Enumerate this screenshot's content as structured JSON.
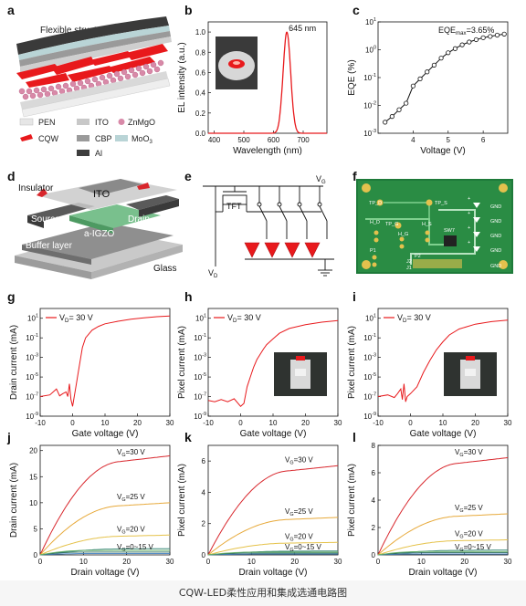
{
  "caption": "CQW-LED柔性应用和集成选通电路图",
  "panel_labels": [
    "a",
    "b",
    "c",
    "d",
    "e",
    "f",
    "g",
    "h",
    "i",
    "j",
    "k",
    "l"
  ],
  "panel_a": {
    "title": "Flexible structure",
    "legend": [
      {
        "label": "PEN",
        "color": "#e6e6e6"
      },
      {
        "label": "ITO",
        "color": "#c8c8c8"
      },
      {
        "label": "ZnMgO",
        "color": "#d889a8"
      },
      {
        "label": "CQW",
        "color": "#e8191c"
      },
      {
        "label": "CBP",
        "color": "#9a9a9a"
      },
      {
        "label": "MoO",
        "sub": "3",
        "color": "#b9d4d6"
      },
      {
        "label": "Al",
        "color": "#3d3d3d"
      }
    ]
  },
  "panel_d": {
    "labels": {
      "insulator": "Insulator",
      "ito": "ITO",
      "source": "Source",
      "drain": "Drain",
      "channel": "a-IGZO",
      "buffer": "Buffer layer",
      "glass": "Glass"
    }
  },
  "panel_e": {
    "labels": {
      "vg": "V",
      "vg_sub": "G",
      "tft": "TFT",
      "vd": "V",
      "vd_sub": "D"
    }
  },
  "panel_f": {
    "labels": [
      "TP_D",
      "TP_S",
      "H_D",
      "TP_G",
      "H_S",
      "SW7",
      "H_G",
      "P1",
      "P2",
      "GND",
      "GND",
      "GND",
      "GND",
      "GND",
      "J2",
      "J1",
      "+",
      "+",
      "+",
      "+"
    ]
  },
  "chart_data": [
    {
      "panel": "b",
      "type": "line",
      "xlabel": "Wavelength (nm)",
      "ylabel": "EL intensity (a.u.)",
      "xlim": [
        380,
        780
      ],
      "ylim": [
        0,
        1.1
      ],
      "xticks": [
        400,
        500,
        600,
        700
      ],
      "yticks": [
        0.0,
        0.2,
        0.4,
        0.6,
        0.8,
        1.0
      ],
      "peak_label": "645 nm",
      "series": [
        {
          "color": "#e8191c",
          "peak_x": 645,
          "fwhm": 30
        }
      ]
    },
    {
      "panel": "c",
      "type": "line",
      "yscale": "log",
      "xlabel": "Voltage (V)",
      "ylabel": "EQE (%)",
      "xlim": [
        3,
        6.7
      ],
      "ylim_exp": [
        -3,
        1
      ],
      "xticks": [
        4,
        5,
        6
      ],
      "yticks_exp": [
        -3,
        -2,
        -1,
        0,
        1
      ],
      "annotation": {
        "text": "EQE",
        "sub": "max",
        "value": "=3.65%"
      },
      "x": [
        3.2,
        3.4,
        3.6,
        3.8,
        4.0,
        4.2,
        4.4,
        4.6,
        4.8,
        5.0,
        5.2,
        5.4,
        5.6,
        5.8,
        6.0,
        6.2,
        6.4,
        6.6
      ],
      "y": [
        0.0025,
        0.004,
        0.007,
        0.012,
        0.05,
        0.09,
        0.16,
        0.28,
        0.5,
        0.78,
        1.1,
        1.5,
        1.9,
        2.3,
        2.7,
        3.0,
        3.35,
        3.65
      ]
    },
    {
      "panel": "g",
      "type": "line",
      "yscale": "log",
      "xlabel": "Gate voltage (V)",
      "ylabel": "Drain current (mA)",
      "legend": {
        "text": "V",
        "sub": "D",
        "value": "= 30 V"
      },
      "xlim": [
        -10,
        30
      ],
      "ylim_exp": [
        -9,
        2
      ],
      "xticks": [
        -10,
        0,
        10,
        20,
        30
      ],
      "yticks_exp": [
        -9,
        -7,
        -5,
        -3,
        -1,
        1
      ],
      "x": [
        -10,
        -7,
        -5,
        -4,
        -3,
        -2,
        -1.5,
        -1,
        -0.5,
        0,
        0.5,
        1,
        2,
        3,
        4,
        6,
        8,
        10,
        14,
        18,
        22,
        26,
        30
      ],
      "y": [
        1e-07,
        1.5e-07,
        6e-07,
        1.2e-07,
        2e-07,
        3e-07,
        1e-07,
        2e-06,
        5e-08,
        1e-08,
        1e-07,
        1e-06,
        0.0001,
        0.01,
        0.1,
        0.6,
        1.5,
        2.7,
        5,
        8,
        11,
        14.5,
        17
      ]
    },
    {
      "panel": "h",
      "type": "line",
      "yscale": "log",
      "xlabel": "Gate voltage (V)",
      "ylabel": "Pixel current (mA)",
      "legend": {
        "text": "V",
        "sub": "D",
        "value": "= 30 V"
      },
      "xlim": [
        -10,
        30
      ],
      "ylim_exp": [
        -9,
        2
      ],
      "xticks": [
        -10,
        0,
        10,
        20,
        30
      ],
      "yticks_exp": [
        -9,
        -7,
        -5,
        -3,
        -1,
        1
      ],
      "x": [
        -10,
        -8,
        -6,
        -4,
        -2,
        0,
        1,
        2,
        3,
        4,
        5,
        6,
        7,
        8,
        10,
        12,
        15,
        20,
        25,
        30
      ],
      "y": [
        4e-08,
        3e-08,
        5e-08,
        3e-08,
        6e-08,
        1e-08,
        2e-08,
        1e-06,
        1e-05,
        0.0001,
        0.0006,
        0.002,
        0.007,
        0.02,
        0.08,
        0.3,
        0.9,
        2.2,
        4,
        5.7
      ]
    },
    {
      "panel": "i",
      "type": "line",
      "yscale": "log",
      "xlabel": "Gate voltage (V)",
      "ylabel": "Pixel current (mA)",
      "legend": {
        "text": "V",
        "sub": "D",
        "value": "= 30 V"
      },
      "xlim": [
        -10,
        30
      ],
      "ylim_exp": [
        -9,
        2
      ],
      "xticks": [
        -10,
        0,
        10,
        20,
        30
      ],
      "yticks_exp": [
        -9,
        -7,
        -5,
        -3,
        -1,
        1
      ],
      "x": [
        -10,
        -7,
        -5,
        -4,
        -3,
        -2.5,
        -2,
        -1.5,
        -1,
        0,
        2,
        4,
        6,
        8,
        10,
        12,
        15,
        20,
        25,
        30
      ],
      "y": [
        1e-07,
        1.5e-07,
        8e-08,
        2e-07,
        6e-07,
        5e-08,
        2e-06,
        3e-08,
        1e-07,
        2e-07,
        1e-06,
        3e-05,
        0.0005,
        0.006,
        0.04,
        0.2,
        0.8,
        2.5,
        4.5,
        6.5
      ]
    },
    {
      "panel": "j",
      "type": "line",
      "xlabel": "Drain voltage (V)",
      "ylabel": "Drain current (mA)",
      "xlim": [
        0,
        30
      ],
      "ylim": [
        0,
        21
      ],
      "xticks": [
        0,
        10,
        20,
        30
      ],
      "yticks": [
        0,
        5,
        10,
        15,
        20
      ],
      "series": [
        {
          "name": "V_G=30 V",
          "label": "V",
          "sub": "G",
          "value": "=30 V",
          "color": "#d8262c",
          "final": 19.0
        },
        {
          "name": "V_G=25 V",
          "label": "V",
          "sub": "G",
          "value": "=25 V",
          "color": "#e7a93a",
          "final": 10.0
        },
        {
          "name": "V_G=20 V",
          "label": "V",
          "sub": "G",
          "value": "=20 V",
          "color": "#e5c24a",
          "final": 3.8
        },
        {
          "name": "V_G=0~15 V",
          "label": "V",
          "sub": "G",
          "value": "=0~15 V",
          "color": "#3c8a7a",
          "final": 1.2
        }
      ]
    },
    {
      "panel": "k",
      "type": "line",
      "xlabel": "Drain voltage (V)",
      "ylabel": "Pixel current (mA)",
      "xlim": [
        0,
        30
      ],
      "ylim": [
        0,
        7
      ],
      "xticks": [
        0,
        10,
        20,
        30
      ],
      "yticks": [
        0,
        2,
        4,
        6
      ],
      "series": [
        {
          "name": "V_G=30 V",
          "label": "V",
          "sub": "G",
          "value": "=30 V",
          "color": "#d8262c",
          "final": 5.7
        },
        {
          "name": "V_G=25 V",
          "label": "V",
          "sub": "G",
          "value": "=25 V",
          "color": "#e7a93a",
          "final": 2.4
        },
        {
          "name": "V_G=20 V",
          "label": "V",
          "sub": "G",
          "value": "=20 V",
          "color": "#e5c24a",
          "final": 0.8
        },
        {
          "name": "V_G=0~15 V",
          "label": "V",
          "sub": "G",
          "value": "=0~15 V",
          "color": "#3c8a7a",
          "final": 0.25
        }
      ]
    },
    {
      "panel": "l",
      "type": "line",
      "xlabel": "Drain voltage (V)",
      "ylabel": "Pixel current (mA)",
      "xlim": [
        0,
        30
      ],
      "ylim": [
        0,
        8
      ],
      "xticks": [
        0,
        10,
        20,
        30
      ],
      "yticks": [
        0,
        2,
        4,
        6,
        8
      ],
      "series": [
        {
          "name": "V_G=30 V",
          "label": "V",
          "sub": "G",
          "value": "=30 V",
          "color": "#d8262c",
          "final": 7.1
        },
        {
          "name": "V_G=25 V",
          "label": "V",
          "sub": "G",
          "value": "=25 V",
          "color": "#e7a93a",
          "final": 3.0
        },
        {
          "name": "V_G=20 V",
          "label": "V",
          "sub": "G",
          "value": "=20 V",
          "color": "#e5c24a",
          "final": 1.1
        },
        {
          "name": "V_G=0~15 V",
          "label": "V",
          "sub": "G",
          "value": "=0~15 V",
          "color": "#3c8a7a",
          "final": 0.35
        }
      ]
    }
  ]
}
